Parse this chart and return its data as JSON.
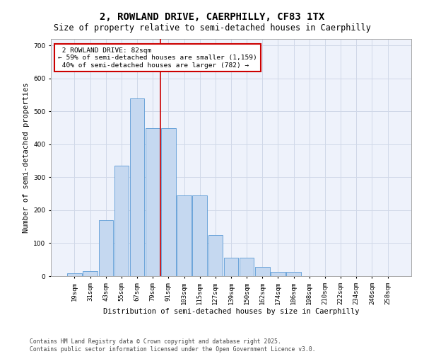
{
  "title_line1": "2, ROWLAND DRIVE, CAERPHILLY, CF83 1TX",
  "title_line2": "Size of property relative to semi-detached houses in Caerphilly",
  "xlabel": "Distribution of semi-detached houses by size in Caerphilly",
  "ylabel": "Number of semi-detached properties",
  "categories": [
    "19sqm",
    "31sqm",
    "43sqm",
    "55sqm",
    "67sqm",
    "79sqm",
    "91sqm",
    "103sqm",
    "115sqm",
    "127sqm",
    "139sqm",
    "150sqm",
    "162sqm",
    "174sqm",
    "186sqm",
    "198sqm",
    "210sqm",
    "222sqm",
    "234sqm",
    "246sqm",
    "258sqm"
  ],
  "values": [
    8,
    15,
    170,
    335,
    540,
    450,
    450,
    245,
    245,
    125,
    55,
    55,
    28,
    12,
    12,
    0,
    0,
    0,
    0,
    0,
    0
  ],
  "bar_color": "#c5d8f0",
  "bar_edge_color": "#5b9bd5",
  "grid_color": "#d0d8e8",
  "bg_color": "#eef2fb",
  "marker_label": "2 ROWLAND DRIVE: 82sqm",
  "smaller_pct": 59,
  "smaller_count": 1159,
  "larger_pct": 40,
  "larger_count": 782,
  "annotation_box_color": "#ffffff",
  "annotation_border_color": "#cc0000",
  "vline_color": "#cc0000",
  "ylim": [
    0,
    720
  ],
  "yticks": [
    0,
    100,
    200,
    300,
    400,
    500,
    600,
    700
  ],
  "footer_line1": "Contains HM Land Registry data © Crown copyright and database right 2025.",
  "footer_line2": "Contains public sector information licensed under the Open Government Licence v3.0.",
  "title_fontsize": 10,
  "subtitle_fontsize": 8.5,
  "axis_label_fontsize": 7.5,
  "tick_fontsize": 6.5,
  "footer_fontsize": 5.8,
  "annotation_fontsize": 6.8
}
